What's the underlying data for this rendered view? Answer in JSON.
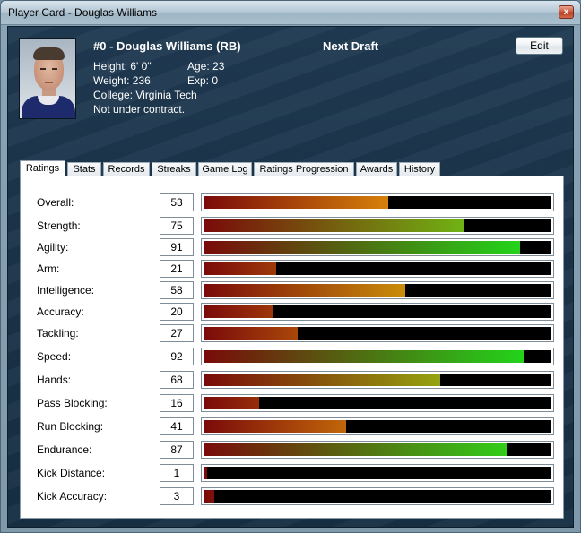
{
  "window": {
    "title": "Player Card - Douglas Williams",
    "close_glyph": "x"
  },
  "player": {
    "name_line": "#0 - Douglas Williams (RB)",
    "draft_label": "Next Draft",
    "height": "Height: 6' 0\"",
    "age": "Age: 23",
    "weight": "Weight: 236",
    "exp": "Exp: 0",
    "college": "College: Virginia Tech",
    "contract": "Not under contract.",
    "photo_icon": "player-photo"
  },
  "edit_label": "Edit",
  "tabs": [
    {
      "label": "Ratings",
      "active": true
    },
    {
      "label": "Stats"
    },
    {
      "label": "Records"
    },
    {
      "label": "Streaks"
    },
    {
      "label": "Game Log"
    },
    {
      "label": "Ratings Progression"
    },
    {
      "label": "Awards"
    },
    {
      "label": "History"
    }
  ],
  "rating_scale_max": 100,
  "ratings": [
    {
      "label": "Overall:",
      "value": 53
    },
    {
      "label": "Strength:",
      "value": 75
    },
    {
      "label": "Agility:",
      "value": 91
    },
    {
      "label": "Arm:",
      "value": 21
    },
    {
      "label": "Intelligence:",
      "value": 58
    },
    {
      "label": "Accuracy:",
      "value": 20
    },
    {
      "label": "Tackling:",
      "value": 27
    },
    {
      "label": "Speed:",
      "value": 92
    },
    {
      "label": "Hands:",
      "value": 68
    },
    {
      "label": "Pass Blocking:",
      "value": 16
    },
    {
      "label": "Run Blocking:",
      "value": 41
    },
    {
      "label": "Endurance:",
      "value": 87
    },
    {
      "label": "Kick Distance:",
      "value": 1
    },
    {
      "label": "Kick Accuracy:",
      "value": 3
    }
  ],
  "colors": {
    "bar_low": "#7a0a0a",
    "bar_mid": "#d9860a",
    "bar_high": "#22d41a",
    "track": "#000000"
  }
}
